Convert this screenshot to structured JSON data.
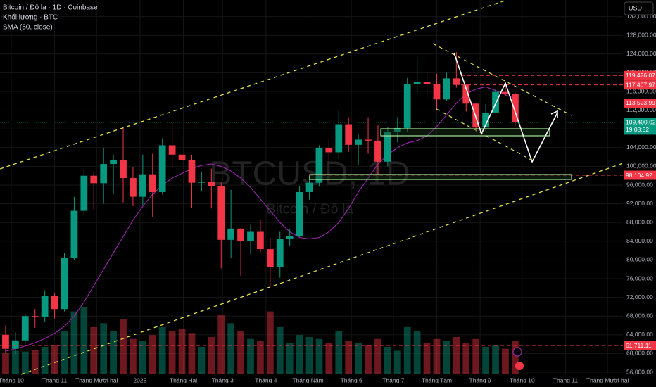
{
  "chart_data": {
    "type": "candlestick",
    "title": "Bitcoin / Đô la · 1D · Coinbase",
    "volume_label": "Khối lượng · BTC",
    "sma_label": "SMA (50, close)",
    "watermark": "BTCUSD, 1D",
    "watermark_sub": "Bitcoin / Đô la",
    "currency": "USD",
    "x": [
      -4,
      3,
      10,
      17,
      24,
      31,
      38,
      45,
      52,
      59,
      66,
      73,
      80,
      87,
      94,
      101,
      108,
      115,
      122,
      129,
      136,
      143,
      150,
      157,
      164,
      171,
      178,
      185,
      192,
      199,
      206,
      213,
      220,
      227,
      234,
      241,
      248,
      255,
      262,
      269,
      276,
      283,
      290,
      297,
      304,
      311,
      318,
      325,
      332,
      339,
      346,
      353,
      360
    ],
    "open": [
      64000,
      61000,
      62800,
      68000,
      67800,
      72300,
      69500,
      80500,
      90500,
      98000,
      96400,
      100500,
      101400,
      97500,
      93500,
      98300,
      94500,
      104500,
      102500,
      101300,
      96500,
      96700,
      95800,
      84300,
      86700,
      84000,
      86000,
      82300,
      78500,
      84500,
      85100,
      94500,
      96500,
      103900,
      103000,
      109000,
      104600,
      105700,
      105500,
      101000,
      107300,
      108200,
      117500,
      118000,
      117600,
      114300,
      118800,
      117400,
      113400,
      108300,
      111500,
      115900,
      115500
    ],
    "high": [
      66000,
      64500,
      68500,
      69500,
      73500,
      73000,
      81500,
      93500,
      99500,
      98800,
      104000,
      102500,
      108300,
      99800,
      102500,
      102700,
      106000,
      109300,
      106500,
      102500,
      98800,
      99500,
      96500,
      95000,
      86800,
      87500,
      88700,
      84700,
      86000,
      86500,
      95800,
      97900,
      104500,
      105800,
      111900,
      110500,
      106800,
      110500,
      108900,
      108500,
      110500,
      118900,
      123200,
      120200,
      119800,
      120000,
      124400,
      117600,
      113600,
      113300,
      116500,
      117800,
      115800
    ],
    "low": [
      60000,
      59800,
      62000,
      65500,
      66800,
      67500,
      69000,
      80000,
      89500,
      90800,
      92000,
      94000,
      92300,
      91500,
      91800,
      89200,
      94000,
      99500,
      97800,
      91200,
      94800,
      91000,
      78200,
      80500,
      76600,
      81200,
      81600,
      74500,
      76200,
      83000,
      84900,
      92900,
      95800,
      100700,
      101500,
      103100,
      100400,
      102700,
      98200,
      100000,
      105100,
      107400,
      115600,
      114700,
      112000,
      114000,
      116800,
      111700,
      107300,
      107500,
      111300,
      114900,
      108700
    ],
    "close": [
      61000,
      62800,
      68000,
      67800,
      72300,
      69500,
      80500,
      90500,
      98000,
      96400,
      100500,
      101400,
      97500,
      93500,
      98300,
      94500,
      104500,
      102500,
      101300,
      96500,
      96700,
      95800,
      84300,
      86700,
      84000,
      86000,
      82300,
      78500,
      84500,
      85100,
      94500,
      96500,
      103900,
      103000,
      109000,
      104600,
      105700,
      105500,
      101000,
      107300,
      108200,
      117500,
      118000,
      117600,
      114300,
      118800,
      117400,
      113400,
      108300,
      111500,
      115900,
      115500,
      109400
    ],
    "volume": [
      55,
      60,
      58,
      62,
      70,
      75,
      110,
      160,
      170,
      120,
      130,
      110,
      140,
      90,
      85,
      100,
      120,
      110,
      115,
      105,
      70,
      95,
      150,
      130,
      110,
      90,
      85,
      160,
      120,
      80,
      100,
      95,
      90,
      80,
      110,
      85,
      80,
      75,
      90,
      70,
      60,
      120,
      110,
      80,
      90,
      85,
      95,
      80,
      90,
      70,
      75,
      65,
      85
    ],
    "sma": [
      60500,
      61000,
      61600,
      62300,
      63200,
      64300,
      65800,
      68000,
      71000,
      74500,
      78000,
      81500,
      85000,
      88500,
      91500,
      94000,
      96000,
      97500,
      98500,
      99500,
      100200,
      100500,
      100000,
      99000,
      97500,
      95500,
      93000,
      90500,
      88000,
      86000,
      84800,
      84500,
      84800,
      86000,
      88000,
      91000,
      94500,
      97500,
      100500,
      102500,
      104000,
      105000,
      105500,
      106500,
      108500,
      111000,
      113500,
      115500,
      116500,
      117000,
      116200,
      115300,
      114500
    ],
    "up_color": "#089981",
    "down_color": "#f23645",
    "sma_color": "#9c27b0",
    "xlim": [
      -8,
      437
    ],
    "ylim": [
      55550,
      135550
    ],
    "xticks": [
      {
        "value": 0,
        "label": "Tháng 10"
      },
      {
        "value": 31,
        "label": "Tháng 11"
      },
      {
        "value": 61,
        "label": "Tháng Mười hai"
      },
      {
        "value": 92,
        "label": "2025"
      },
      {
        "value": 123,
        "label": "Tháng Hai"
      },
      {
        "value": 151,
        "label": "Tháng 3"
      },
      {
        "value": 182,
        "label": "Tháng 4"
      },
      {
        "value": 212,
        "label": "Tháng Năm"
      },
      {
        "value": 243,
        "label": "Tháng 6"
      },
      {
        "value": 273,
        "label": "Tháng 7"
      },
      {
        "value": 304,
        "label": "Tháng Tám"
      },
      {
        "value": 335,
        "label": "Tháng 9"
      },
      {
        "value": 365,
        "label": "Tháng 10"
      },
      {
        "value": 396,
        "label": "Tháng 11"
      },
      {
        "value": 426,
        "label": "Tháng Mười hai"
      }
    ],
    "yticks": [
      {
        "value": 56000,
        "label": "56,000.00"
      },
      {
        "value": 60000,
        "label": "60,000.00"
      },
      {
        "value": 64000,
        "label": "64,000.00"
      },
      {
        "value": 68000,
        "label": "68,000.00"
      },
      {
        "value": 72000,
        "label": "72,000.00"
      },
      {
        "value": 76000,
        "label": "76,000.00"
      },
      {
        "value": 80000,
        "label": "80,000.00"
      },
      {
        "value": 84000,
        "label": "84,000.00"
      },
      {
        "value": 88000,
        "label": "88,000.00"
      },
      {
        "value": 92000,
        "label": "92,000.00"
      },
      {
        "value": 96000,
        "label": "96,000.00"
      },
      {
        "value": 100000,
        "label": "100,000.00"
      },
      {
        "value": 104000,
        "label": "104,000.00"
      },
      {
        "value": 108000,
        "label": "108,000.00"
      },
      {
        "value": 112000,
        "label": "112,000.00"
      },
      {
        "value": 116000,
        "label": "116,000.00"
      },
      {
        "value": 120000,
        "label": "120,000.00"
      },
      {
        "value": 124000,
        "label": "124,000.00"
      },
      {
        "value": 128000,
        "label": "128,000.00"
      },
      {
        "value": 132000,
        "label": "132,000.00"
      }
    ],
    "levels": [
      {
        "value": 119426.07,
        "label": "119,426.07"
      },
      {
        "value": 117407.97,
        "label": "117,407.97"
      },
      {
        "value": 113523.99,
        "label": "113,523.99"
      },
      {
        "value": 98104.92,
        "label": "98,104.92"
      },
      {
        "value": 61711.11,
        "label": "61,711.11"
      }
    ],
    "level_color": "#f23645",
    "last_price": {
      "value": 109400.02,
      "label": "109,400.02"
    },
    "countdown": "19:08:52",
    "grid": true
  }
}
